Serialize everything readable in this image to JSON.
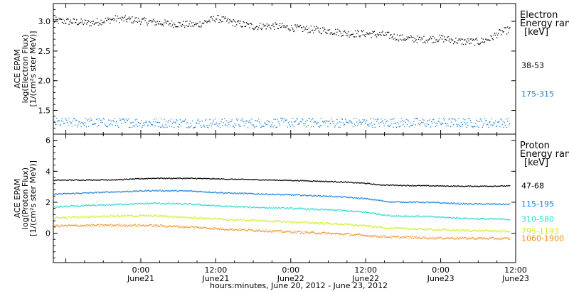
{
  "chart_data": {
    "type": "scatter",
    "title": "",
    "xlabel": "hours:minutes, June 20, 2012 - June 23, 2012",
    "x_range_hours": [
      -14,
      60
    ],
    "x_ticks": [
      {
        "hour": 0,
        "time": "0:00",
        "date": "June21"
      },
      {
        "hour": 12,
        "time": "12:00",
        "date": "June21"
      },
      {
        "hour": 24,
        "time": "0:00",
        "date": "June22"
      },
      {
        "hour": 36,
        "time": "12:00",
        "date": "June22"
      },
      {
        "hour": 48,
        "time": "0:00",
        "date": "June23"
      },
      {
        "hour": 60,
        "time": "12:00",
        "date": "June23"
      }
    ],
    "panels": [
      {
        "id": "electron",
        "ylabel_lines": [
          "ACE EPAM",
          "log(Electron Flux)",
          "[1/(cm²s ster MeV)]"
        ],
        "ylim": [
          1.1,
          3.3
        ],
        "yticks": [
          "1.5",
          "2.0",
          "2.5",
          "3.0"
        ],
        "legend_title": [
          "Electron",
          "Energy ran",
          "[keV]"
        ],
        "series": [
          {
            "name": "38-53",
            "color": "#000000",
            "noise": 0.06,
            "points": [
              [
                -14,
                3.02
              ],
              [
                -8,
                2.98
              ],
              [
                -4,
                3.05
              ],
              [
                -1,
                3.03
              ],
              [
                3,
                2.98
              ],
              [
                6,
                2.96
              ],
              [
                9,
                2.95
              ],
              [
                12,
                3.06
              ],
              [
                15,
                2.98
              ],
              [
                18,
                2.92
              ],
              [
                21,
                2.93
              ],
              [
                24,
                2.9
              ],
              [
                27,
                2.87
              ],
              [
                30,
                2.85
              ],
              [
                33,
                2.8
              ],
              [
                36,
                2.8
              ],
              [
                39,
                2.78
              ],
              [
                42,
                2.72
              ],
              [
                45,
                2.7
              ],
              [
                48,
                2.72
              ],
              [
                51,
                2.67
              ],
              [
                54,
                2.66
              ],
              [
                56,
                2.72
              ],
              [
                57,
                2.8
              ],
              [
                59,
                2.87
              ]
            ]
          },
          {
            "name": "175-315",
            "color": "#1a7fd8",
            "noise": 0.08,
            "points": [
              [
                -14,
                1.3
              ],
              [
                0,
                1.3
              ],
              [
                12,
                1.29
              ],
              [
                24,
                1.3
              ],
              [
                36,
                1.3
              ],
              [
                48,
                1.3
              ],
              [
                59,
                1.3
              ]
            ]
          }
        ]
      },
      {
        "id": "proton",
        "ylabel_lines": [
          "ACE EPAM",
          "log(Proton Flux)",
          "[1/(cm²s ster MeV)]"
        ],
        "ylim": [
          -1.9,
          6.4
        ],
        "yticks": [
          "0",
          "2",
          "4",
          "6"
        ],
        "legend_title": [
          "Proton",
          "Energy ran",
          "[keV]"
        ],
        "series": [
          {
            "name": "47-68",
            "color": "#000000",
            "noise": 0.03,
            "points": [
              [
                -14,
                3.45
              ],
              [
                -4,
                3.48
              ],
              [
                2,
                3.58
              ],
              [
                8,
                3.57
              ],
              [
                14,
                3.52
              ],
              [
                20,
                3.47
              ],
              [
                26,
                3.42
              ],
              [
                32,
                3.34
              ],
              [
                36,
                3.25
              ],
              [
                38,
                3.15
              ],
              [
                44,
                3.1
              ],
              [
                52,
                3.06
              ],
              [
                59,
                3.08
              ]
            ]
          },
          {
            "name": "115-195",
            "color": "#1a7fd8",
            "noise": 0.04,
            "points": [
              [
                -14,
                2.55
              ],
              [
                -4,
                2.7
              ],
              [
                2,
                2.78
              ],
              [
                8,
                2.75
              ],
              [
                14,
                2.62
              ],
              [
                20,
                2.55
              ],
              [
                26,
                2.48
              ],
              [
                32,
                2.38
              ],
              [
                36,
                2.25
              ],
              [
                40,
                2.05
              ],
              [
                46,
                2.02
              ],
              [
                52,
                1.92
              ],
              [
                59,
                1.9
              ]
            ]
          },
          {
            "name": "310-580",
            "color": "#22d8d0",
            "noise": 0.05,
            "points": [
              [
                -14,
                1.72
              ],
              [
                -4,
                1.88
              ],
              [
                2,
                1.96
              ],
              [
                8,
                1.9
              ],
              [
                14,
                1.75
              ],
              [
                20,
                1.68
              ],
              [
                26,
                1.6
              ],
              [
                32,
                1.5
              ],
              [
                36,
                1.38
              ],
              [
                40,
                1.15
              ],
              [
                46,
                1.1
              ],
              [
                52,
                0.98
              ],
              [
                59,
                0.92
              ]
            ]
          },
          {
            "name": "795-1193",
            "color": "#c8ee18",
            "noise": 0.06,
            "points": [
              [
                -14,
                1.02
              ],
              [
                -4,
                1.15
              ],
              [
                2,
                1.15
              ],
              [
                8,
                1.05
              ],
              [
                14,
                0.9
              ],
              [
                20,
                0.82
              ],
              [
                26,
                0.72
              ],
              [
                32,
                0.62
              ],
              [
                36,
                0.5
              ],
              [
                40,
                0.35
              ],
              [
                46,
                0.28
              ],
              [
                52,
                0.2
              ],
              [
                59,
                0.15
              ]
            ]
          },
          {
            "name": "1060-1900",
            "color": "#f08a18",
            "noise": 0.07,
            "points": [
              [
                -14,
                0.5
              ],
              [
                -4,
                0.55
              ],
              [
                2,
                0.52
              ],
              [
                8,
                0.42
              ],
              [
                14,
                0.28
              ],
              [
                20,
                0.18
              ],
              [
                26,
                0.08
              ],
              [
                32,
                -0.02
              ],
              [
                36,
                -0.12
              ],
              [
                40,
                -0.22
              ],
              [
                46,
                -0.28
              ],
              [
                52,
                -0.3
              ],
              [
                59,
                -0.32
              ]
            ]
          }
        ]
      }
    ]
  }
}
